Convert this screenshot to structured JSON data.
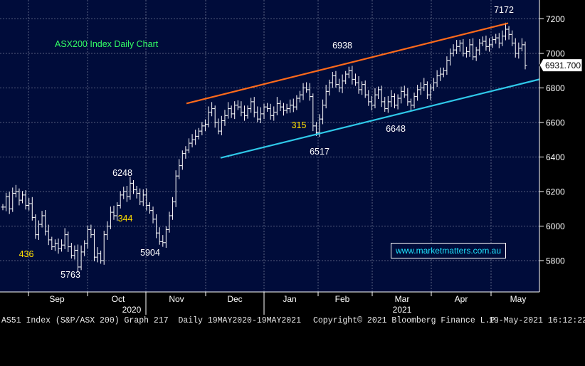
{
  "chart_data": {
    "type": "candlestick",
    "title": "ASX200 Index Daily Chart",
    "x_month_labels": [
      "Sep",
      "Oct",
      "Nov",
      "Dec",
      "Jan",
      "Feb",
      "Mar",
      "Apr",
      "May"
    ],
    "x_year_labels": [
      "2020",
      "2021"
    ],
    "y_ticks": [
      5800,
      6000,
      6200,
      6400,
      6600,
      6800,
      7000,
      7200
    ],
    "ylim": [
      5640,
      7260
    ],
    "last_price_label": "6931.700",
    "grid": true,
    "annotations": [
      {
        "text": "7172",
        "color": "#ffffff"
      },
      {
        "text": "6938",
        "color": "#ffffff"
      },
      {
        "text": "6248",
        "color": "#ffffff"
      },
      {
        "text": "6648",
        "color": "#ffffff"
      },
      {
        "text": "6517",
        "color": "#ffffff"
      },
      {
        "text": "5904",
        "color": "#ffffff"
      },
      {
        "text": "5763",
        "color": "#ffffff"
      },
      {
        "text": "315",
        "color": "#ffe000"
      },
      {
        "text": "344",
        "color": "#ffe000"
      },
      {
        "text": "436",
        "color": "#ffe000"
      }
    ],
    "trendlines": [
      {
        "name": "upper",
        "color": "#ff6a1a",
        "from": {
          "date": "2020-11-20",
          "value": 6710
        },
        "to": {
          "date": "2021-05-12",
          "value": 7175
        }
      },
      {
        "name": "lower",
        "color": "#2fc8e8",
        "from": {
          "date": "2020-12-04",
          "value": 6395
        },
        "to": {
          "date": "2021-05-19",
          "value": 6850
        }
      }
    ],
    "series": [
      {
        "values": [
          6110,
          6170,
          6100,
          6190,
          6200,
          6150,
          6180,
          6120,
          6130,
          6050,
          5950,
          6010,
          6060,
          5970,
          5920,
          5880,
          5900,
          5870,
          5890,
          5950,
          5880,
          5830,
          5860,
          5763,
          5850,
          5900,
          5980,
          5950,
          5820,
          5840,
          5800,
          5950,
          6000,
          6080,
          6060,
          6120,
          6180,
          6200,
          6170,
          6248,
          6210,
          6190,
          6140,
          6180,
          6120,
          6090,
          6040,
          5960,
          5910,
          5904,
          5980,
          6060,
          6140,
          6290,
          6350,
          6420,
          6440,
          6480,
          6500,
          6520,
          6550,
          6580,
          6590,
          6660,
          6680,
          6600,
          6550,
          6610,
          6640,
          6680,
          6650,
          6700,
          6690,
          6660,
          6640,
          6680,
          6720,
          6660,
          6620,
          6650,
          6690,
          6680,
          6640,
          6660,
          6710,
          6690,
          6670,
          6680,
          6700,
          6690,
          6740,
          6760,
          6800,
          6790,
          6750,
          6580,
          6540,
          6620,
          6700,
          6780,
          6830,
          6870,
          6820,
          6800,
          6840,
          6880,
          6900,
          6850,
          6830,
          6790,
          6820,
          6760,
          6720,
          6700,
          6760,
          6790,
          6720,
          6680,
          6720,
          6750,
          6700,
          6740,
          6780,
          6760,
          6720,
          6700,
          6750,
          6790,
          6800,
          6820,
          6760,
          6800,
          6830,
          6870,
          6880,
          6900,
          6960,
          7000,
          7020,
          7040,
          7060,
          7000,
          7010,
          7050,
          6980,
          7020,
          7060,
          7070,
          7040,
          7050,
          7080,
          7090,
          7060,
          7100,
          7140,
          7110,
          7060,
          7000,
          7030,
          7050,
          6931.7
        ]
      }
    ]
  },
  "watermark": "www.marketmatters.com.au",
  "footer": {
    "left": "AS51 Index (S&P/ASX 200) Graph 217  Daily 19MAY2020-19MAY2021",
    "center": "Copyright© 2021 Bloomberg Finance L.P.",
    "right": "19-May-2021 16:12:22"
  },
  "colors": {
    "background": "#000c3a",
    "grid": "#6f7893",
    "candles": "#ffffff",
    "title": "#33ff66",
    "annotation_yellow": "#ffe000",
    "upper_trendline": "#ff6a1a",
    "lower_trendline": "#2fc8e8"
  }
}
